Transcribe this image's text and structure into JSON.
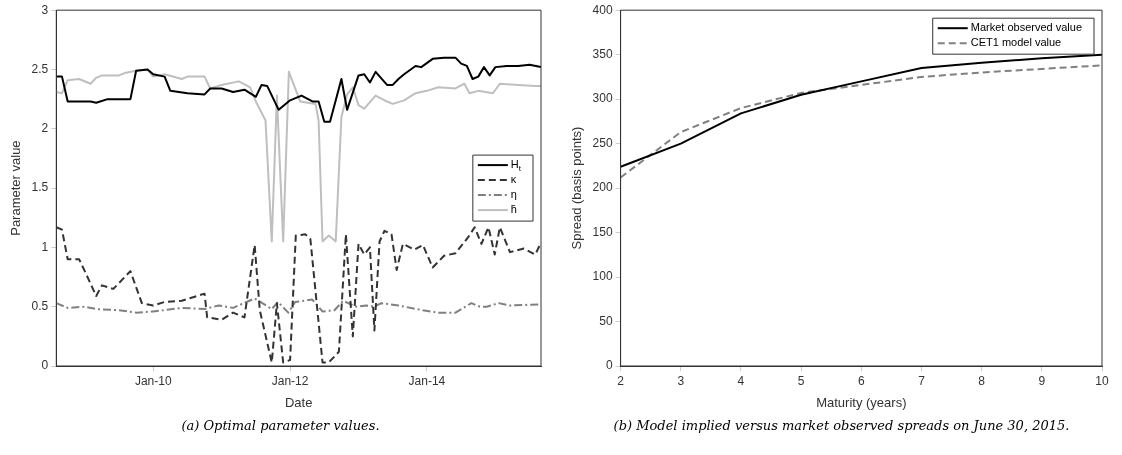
{
  "chart_data": [
    {
      "type": "line",
      "xlabel": "Date",
      "ylabel": "Parameter value",
      "annotations": [
        "(a) Optimal parameter values."
      ],
      "xlim": [
        "2008-08",
        "2015-09"
      ],
      "xticks": [
        {
          "value": "2010-01",
          "label": "Jan-10"
        },
        {
          "value": "2012-01",
          "label": "Jan-12"
        },
        {
          "value": "2014-01",
          "label": "Jan-14"
        }
      ],
      "ylim": [
        0,
        3
      ],
      "yticks": [
        0,
        0.5,
        1,
        1.5,
        2,
        2.5,
        3
      ],
      "legend": "right",
      "marker": "none",
      "series": [
        {
          "name": "H$_{t}$",
          "color": "#000000",
          "line_style": "solid",
          "x": [
            "2008-08",
            "2008-09",
            "2008-10",
            "2009-02",
            "2009-03",
            "2009-05",
            "2009-09",
            "2009-10",
            "2009-12",
            "2010-01",
            "2010-03",
            "2010-04",
            "2010-07",
            "2010-10",
            "2010-11",
            "2011-01",
            "2011-03",
            "2011-05",
            "2011-07",
            "2011-08",
            "2011-09",
            "2011-11",
            "2012-01",
            "2012-03",
            "2012-05",
            "2012-06",
            "2012-07",
            "2012-08",
            "2012-10",
            "2012-11",
            "2013-01",
            "2013-02",
            "2013-03",
            "2013-04",
            "2013-06",
            "2013-07",
            "2013-08",
            "2013-09",
            "2013-11",
            "2013-12",
            "2014-02",
            "2014-04",
            "2014-06",
            "2014-07",
            "2014-08",
            "2014-09",
            "2014-10",
            "2014-11",
            "2014-12",
            "2015-01",
            "2015-03",
            "2015-05",
            "2015-07",
            "2015-09"
          ],
          "values": [
            2.44,
            2.44,
            2.23,
            2.23,
            2.22,
            2.25,
            2.25,
            2.49,
            2.5,
            2.46,
            2.44,
            2.32,
            2.3,
            2.29,
            2.34,
            2.34,
            2.31,
            2.33,
            2.27,
            2.37,
            2.36,
            2.16,
            2.24,
            2.28,
            2.23,
            2.23,
            2.06,
            2.06,
            2.42,
            2.16,
            2.45,
            2.46,
            2.39,
            2.48,
            2.37,
            2.37,
            2.42,
            2.46,
            2.53,
            2.52,
            2.59,
            2.6,
            2.6,
            2.55,
            2.53,
            2.42,
            2.44,
            2.52,
            2.45,
            2.52,
            2.53,
            2.53,
            2.54,
            2.52
          ]
        },
        {
          "name": "κ",
          "color": "#333333",
          "line_style": "dashed",
          "x": [
            "2008-08",
            "2008-09",
            "2008-10",
            "2008-12",
            "2009-01",
            "2009-03",
            "2009-04",
            "2009-06",
            "2009-09",
            "2009-11",
            "2010-01",
            "2010-03",
            "2010-06",
            "2010-08",
            "2010-10",
            "2010-10-15",
            "2011-01",
            "2011-03",
            "2011-05",
            "2011-06-25",
            "2011-07-22",
            "2011-09-25",
            "2011-10-22",
            "2011-11-25",
            "2012-01",
            "2012-02",
            "2012-03-22",
            "2012-04-18",
            "2012-06-22",
            "2012-07-25",
            "2012-09-18",
            "2012-10-25",
            "2012-12",
            "2013-01",
            "2013-02",
            "2013-03",
            "2013-03-25",
            "2013-04-22",
            "2013-05-18",
            "2013-06-25",
            "2013-07-22",
            "2013-08-25",
            "2013-10-25",
            "2013-12-10",
            "2014-02",
            "2014-04",
            "2014-06",
            "2014-08-10",
            "2014-09-12",
            "2014-10-18",
            "2014-11-25",
            "2014-12-28",
            "2015-01-25",
            "2015-03-18",
            "2015-06",
            "2015-08",
            "2015-09"
          ],
          "values": [
            1.17,
            1.15,
            0.9,
            0.9,
            0.8,
            0.59,
            0.68,
            0.65,
            0.8,
            0.53,
            0.51,
            0.54,
            0.55,
            0.58,
            0.61,
            0.41,
            0.39,
            0.45,
            0.41,
            1.02,
            0.47,
            0.03,
            0.53,
            0.03,
            0.05,
            1.1,
            1.11,
            1.07,
            0.03,
            0.03,
            0.12,
            1.11,
            0.25,
            1.03,
            0.94,
            1.0,
            0.3,
            1.05,
            1.14,
            1.11,
            0.81,
            1.03,
            0.98,
            1.02,
            0.83,
            0.93,
            0.95,
            1.09,
            1.17,
            1.03,
            1.17,
            0.94,
            1.17,
            0.96,
            0.99,
            0.94,
            1.04
          ]
        },
        {
          "name": "η",
          "color": "#808080",
          "line_style": "dashdot",
          "x": [
            "2008-08",
            "2008-10",
            "2009-01",
            "2009-03",
            "2009-07",
            "2009-10",
            "2010-01",
            "2010-06",
            "2010-10",
            "2010-12-15",
            "2011-03",
            "2011-06-25",
            "2011-09-25",
            "2011-10-28",
            "2011-12-22",
            "2012-01-28",
            "2012-04-28",
            "2012-06-22",
            "2012-08-25",
            "2012-10-10",
            "2012-12-18",
            "2013-02-12",
            "2013-03-25",
            "2013-05",
            "2013-08",
            "2013-12-10",
            "2014-03",
            "2014-06",
            "2014-08-25",
            "2014-10-10",
            "2014-11-15",
            "2015-01-18",
            "2015-03-18",
            "2015-09"
          ],
          "values": [
            0.53,
            0.49,
            0.5,
            0.48,
            0.47,
            0.45,
            0.46,
            0.49,
            0.48,
            0.51,
            0.49,
            0.57,
            0.48,
            0.54,
            0.45,
            0.54,
            0.56,
            0.46,
            0.47,
            0.55,
            0.5,
            0.51,
            0.5,
            0.53,
            0.51,
            0.47,
            0.45,
            0.45,
            0.53,
            0.5,
            0.5,
            0.53,
            0.51,
            0.52
          ]
        },
        {
          "name": "h̄",
          "color": "#bfbfbf",
          "line_style": "solid",
          "x": [
            "2008-08",
            "2008-09",
            "2008-10",
            "2008-12",
            "2009-02",
            "2009-03",
            "2009-04",
            "2009-07",
            "2009-08",
            "2009-10",
            "2009-12",
            "2010-01",
            "2010-03",
            "2010-06",
            "2010-07",
            "2010-10",
            "2010-11",
            "2011-01",
            "2011-04",
            "2011-06",
            "2011-07",
            "2011-08-22",
            "2011-09-25",
            "2011-10-22",
            "2011-11-25",
            "2011-12-25",
            "2012-02-25",
            "2012-05-15",
            "2012-06",
            "2012-06-22",
            "2012-07-25",
            "2012-09",
            "2012-10",
            "2012-11",
            "2012-12",
            "2013-01",
            "2013-02",
            "2013-04",
            "2013-06",
            "2013-07",
            "2013-09",
            "2013-11",
            "2014-01",
            "2014-03",
            "2014-06",
            "2014-07-18",
            "2014-08-15",
            "2014-10",
            "2014-12-18",
            "2015-01-25",
            "2015-05",
            "2015-08",
            "2015-09"
          ],
          "values": [
            2.31,
            2.3,
            2.41,
            2.42,
            2.38,
            2.43,
            2.45,
            2.45,
            2.47,
            2.49,
            2.5,
            2.44,
            2.46,
            2.42,
            2.44,
            2.44,
            2.34,
            2.37,
            2.4,
            2.35,
            2.23,
            2.07,
            1.05,
            2.28,
            1.05,
            2.48,
            2.23,
            2.21,
            2.07,
            1.05,
            1.1,
            1.05,
            2.1,
            2.29,
            2.35,
            2.2,
            2.17,
            2.28,
            2.23,
            2.21,
            2.24,
            2.3,
            2.32,
            2.35,
            2.34,
            2.38,
            2.3,
            2.32,
            2.3,
            2.38,
            2.37,
            2.36,
            2.36
          ]
        }
      ]
    },
    {
      "type": "line",
      "xlabel": "Maturity (years)",
      "ylabel": "Spread (basis points)",
      "annotations": [
        "(b) Model implied versus market observed spreads on June 30, 2015."
      ],
      "x": [
        2,
        3,
        4,
        5,
        6,
        7,
        8,
        9,
        10
      ],
      "xlim": [
        2,
        10
      ],
      "xticks": [
        2,
        3,
        4,
        5,
        6,
        7,
        8,
        9,
        10
      ],
      "ylim": [
        0,
        400
      ],
      "yticks": [
        0,
        50,
        100,
        150,
        200,
        250,
        300,
        350,
        400
      ],
      "legend": "top right",
      "marker": "none",
      "series": [
        {
          "name": "Market observed value",
          "color": "#000000",
          "line_style": "solid",
          "values": [
            224,
            250,
            284,
            305,
            320,
            335,
            341,
            346,
            350
          ]
        },
        {
          "name": "CET1 model value",
          "color": "#808080",
          "line_style": "dashed",
          "values": [
            212,
            263,
            290,
            307,
            316,
            325,
            330,
            334,
            338
          ]
        }
      ]
    }
  ]
}
